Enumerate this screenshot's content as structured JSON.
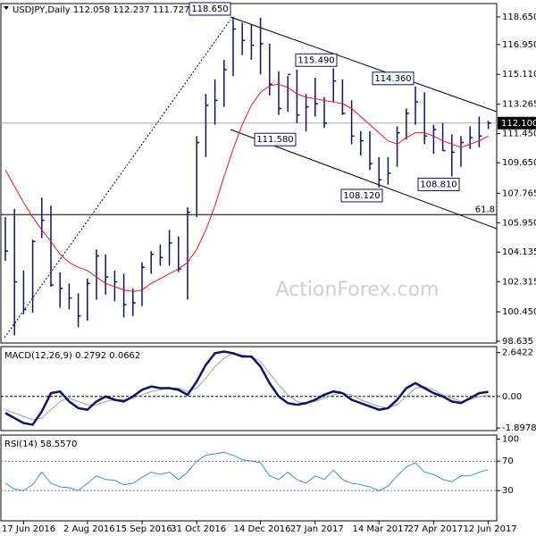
{
  "chart_data": [
    {
      "type": "ohlc",
      "title": "USDJPY,Daily  112.058 112.237 111.727 112.100",
      "watermark": "ActionForex.com",
      "categories": [
        null,
        null,
        "17 Jun 2016",
        null,
        null,
        null,
        null,
        null,
        null,
        "2 Aug 2016",
        null,
        null,
        null,
        null,
        null,
        "15 Sep 2016",
        null,
        null,
        null,
        null,
        null,
        "31 Oct 2016",
        null,
        null,
        null,
        null,
        null,
        null,
        "14 Dec 2016",
        null,
        null,
        null,
        null,
        null,
        "27 Jan 2017",
        null,
        null,
        null,
        null,
        null,
        null,
        "14 Mar 2017",
        null,
        null,
        null,
        null,
        null,
        "27 Apr 2017",
        null,
        null,
        null,
        null,
        null,
        "12 Jun 2017"
      ],
      "high": [
        106.3,
        106.8,
        103.0,
        104.9,
        107.5,
        107.0,
        102.9,
        102.2,
        101.6,
        102.5,
        104.3,
        104.0,
        103.0,
        102.8,
        101.9,
        103.5,
        104.2,
        104.6,
        105.5,
        105.1,
        106.9,
        111.3,
        113.9,
        114.8,
        116.0,
        118.65,
        118.3,
        118.2,
        118.6,
        117.0,
        115.3,
        115.0,
        115.4,
        113.9,
        114.9,
        113.7,
        115.49,
        114.8,
        113.5,
        111.6,
        111.6,
        110.0,
        110.0,
        111.9,
        113.0,
        114.36,
        114.0,
        112.0,
        112.1,
        111.4,
        111.3,
        111.9,
        112.5,
        112.237
      ],
      "low": [
        103.6,
        99.0,
        100.3,
        100.4,
        105.0,
        102.0,
        100.7,
        100.6,
        99.5,
        99.9,
        101.2,
        101.5,
        101.1,
        100.1,
        100.2,
        100.8,
        102.8,
        103.3,
        103.3,
        102.9,
        101.2,
        106.3,
        110.0,
        112.0,
        113.1,
        115.0,
        116.3,
        116.0,
        115.1,
        113.8,
        112.6,
        112.8,
        112.1,
        111.58,
        112.5,
        111.8,
        113.4,
        112.6,
        110.8,
        110.1,
        109.2,
        108.12,
        108.3,
        109.4,
        111.1,
        112.0,
        110.8,
        110.2,
        110.4,
        108.81,
        109.4,
        110.5,
        110.6,
        111.727
      ],
      "close": [
        104.2,
        102.3,
        100.6,
        104.8,
        106.1,
        102.1,
        101.9,
        101.3,
        100.2,
        102.2,
        103.9,
        102.6,
        102.3,
        100.9,
        101.0,
        103.2,
        104.0,
        103.8,
        104.7,
        103.1,
        106.6,
        110.9,
        113.2,
        113.5,
        115.4,
        117.9,
        117.2,
        116.9,
        117.0,
        114.5,
        113.0,
        115.1,
        112.6,
        113.1,
        113.3,
        112.1,
        114.7,
        112.7,
        111.3,
        111.0,
        109.6,
        108.6,
        109.0,
        111.5,
        112.7,
        113.4,
        111.3,
        111.7,
        110.4,
        110.3,
        110.9,
        111.2,
        111.3,
        112.1
      ],
      "bar_color": "#10106a",
      "ma": {
        "color": "#e8161b",
        "values": [
          109.2,
          108.2,
          107.2,
          106.3,
          105.5,
          104.8,
          104.0,
          103.5,
          103.2,
          103.0,
          102.6,
          102.2,
          102.0,
          101.8,
          101.7,
          101.8,
          102.2,
          102.5,
          102.8,
          103.1,
          103.5,
          104.3,
          105.5,
          107.0,
          108.8,
          110.5,
          112.0,
          113.2,
          114.0,
          114.4,
          114.5,
          114.3,
          113.9,
          113.7,
          113.6,
          113.5,
          113.4,
          113.3,
          113.0,
          112.5,
          112.0,
          111.5,
          111.0,
          110.8,
          111.2,
          111.5,
          111.5,
          111.3,
          111.0,
          110.8,
          110.6,
          110.8,
          111.0,
          111.3
        ]
      },
      "ylim": [
        98.58,
        119.42
      ],
      "yticks": [
        {
          "value": 118.65,
          "label": "118.650"
        },
        {
          "value": 116.95,
          "label": "116.950"
        },
        {
          "value": 115.11,
          "label": "115.110"
        },
        {
          "value": 113.265,
          "label": "113.265"
        },
        {
          "value": 111.45,
          "label": "111.450"
        },
        {
          "value": 109.65,
          "label": "109.650"
        },
        {
          "value": 107.765,
          "label": "107.765"
        },
        {
          "value": 105.95,
          "label": "105.950"
        },
        {
          "value": 104.135,
          "label": "104.135"
        },
        {
          "value": 102.315,
          "label": "102.315"
        },
        {
          "value": 100.45,
          "label": "100.450"
        },
        {
          "value": 98.635,
          "label": "98.635"
        }
      ],
      "last_price": {
        "value": 112.1,
        "label": "112.100"
      },
      "fib_level": {
        "value": 106.45,
        "label": "61.8"
      },
      "annotations": [
        {
          "value": 118.65,
          "label": "118.650"
        },
        {
          "value": 115.49,
          "label": "115.490"
        },
        {
          "value": 111.58,
          "label": "111.580"
        },
        {
          "value": 114.36,
          "label": "114.360"
        },
        {
          "value": 108.12,
          "label": "108.120"
        },
        {
          "value": 108.81,
          "label": "108.810"
        }
      ]
    },
    {
      "type": "macd",
      "title": "MACD(12,26,9) 0.2792 0.0662",
      "series": [
        {
          "color": "#10106a",
          "values": [
            -1.0,
            -1.3,
            -1.6,
            -1.7,
            -0.9,
            0.2,
            0.3,
            -0.3,
            -0.7,
            -0.8,
            -0.3,
            0.0,
            -0.2,
            -0.3,
            0.0,
            0.4,
            0.6,
            0.5,
            0.5,
            0.4,
            0.1,
            0.9,
            1.9,
            2.6,
            2.7,
            2.6,
            2.4,
            2.4,
            1.8,
            0.8,
            0.0,
            -0.4,
            -0.5,
            -0.4,
            -0.2,
            0.1,
            0.3,
            0.2,
            -0.2,
            -0.4,
            -0.6,
            -0.8,
            -0.7,
            -0.2,
            0.5,
            0.8,
            0.5,
            0.2,
            0.0,
            -0.3,
            -0.4,
            -0.1,
            0.2,
            0.2792
          ]
        },
        {
          "color": "#a0a0a0",
          "values": [
            -0.8,
            -1.0,
            -1.2,
            -1.4,
            -1.3,
            -0.8,
            -0.3,
            -0.1,
            -0.3,
            -0.5,
            -0.5,
            -0.3,
            -0.2,
            -0.2,
            -0.1,
            0.1,
            0.3,
            0.4,
            0.5,
            0.5,
            0.3,
            0.5,
            1.1,
            1.8,
            2.3,
            2.6,
            2.5,
            2.4,
            2.1,
            1.4,
            0.7,
            0.1,
            -0.3,
            -0.4,
            -0.3,
            -0.1,
            0.1,
            0.2,
            0.1,
            -0.2,
            -0.4,
            -0.6,
            -0.7,
            -0.5,
            0.0,
            0.5,
            0.6,
            0.4,
            0.1,
            -0.1,
            -0.3,
            -0.2,
            0.0,
            0.0662
          ]
        }
      ],
      "ylim": [
        -2.0,
        3.0
      ],
      "yticks": [
        2.6422,
        {
          "value": 0,
          "label": "0.00"
        },
        -1.8978
      ]
    },
    {
      "type": "rsi",
      "title": "RSI(14) 58.5570",
      "series": [
        {
          "color": "#3b8fd4",
          "values": [
            40,
            32,
            30,
            38,
            55,
            40,
            35,
            34,
            30,
            40,
            50,
            45,
            44,
            38,
            40,
            48,
            55,
            52,
            55,
            45,
            55,
            70,
            78,
            80,
            82,
            78,
            72,
            70,
            68,
            50,
            45,
            55,
            45,
            40,
            50,
            45,
            58,
            45,
            40,
            38,
            35,
            30,
            36,
            50,
            62,
            68,
            55,
            52,
            45,
            42,
            50,
            50,
            55,
            58.557
          ]
        }
      ],
      "ylim": [
        -5,
        103
      ],
      "yticks": [
        100,
        70,
        30
      ],
      "grid_levels": [
        70,
        30
      ]
    }
  ]
}
